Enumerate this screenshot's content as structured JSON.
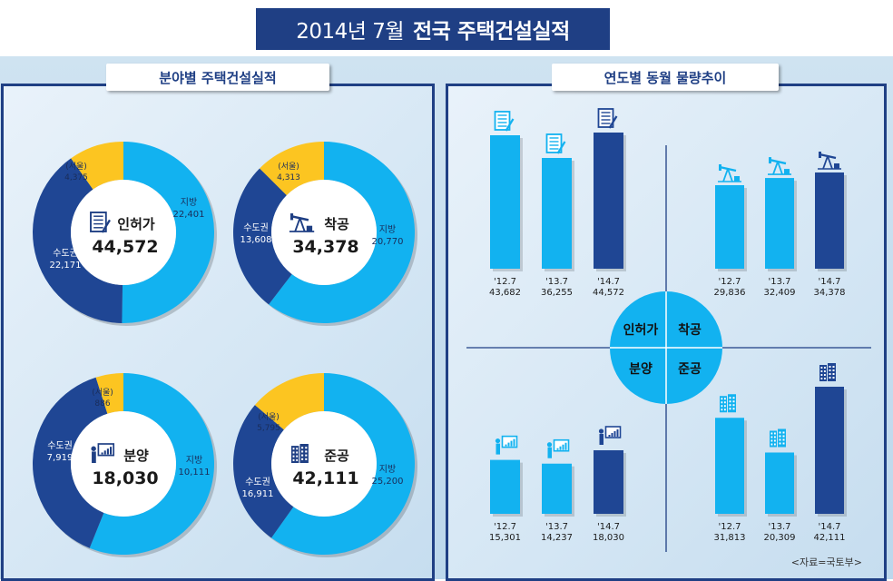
{
  "title": {
    "regular": "2014년  7월",
    "bold": "전국 주택건설실적"
  },
  "left_panel_label": "분야별 주택건설실적",
  "right_panel_label": "연도별 동월 물량추이",
  "source": "<자료=국토부>",
  "chart_data": [
    {
      "type": "pie",
      "name": "인허가",
      "total": "44,572",
      "icon": "document-icon",
      "slices": [
        {
          "label": "지방",
          "value": 22401,
          "display": "22,401",
          "color": "#12b2f0"
        },
        {
          "label": "수도권",
          "value": 22171,
          "display": "22,171",
          "color": "#1f4694"
        },
        {
          "label": "(서울)",
          "value": 4375,
          "display": "4,375",
          "color": "#fcc521"
        }
      ]
    },
    {
      "type": "pie",
      "name": "착공",
      "total": "34,378",
      "icon": "oil-pump-icon",
      "slices": [
        {
          "label": "지방",
          "value": 20770,
          "display": "20,770",
          "color": "#12b2f0"
        },
        {
          "label": "수도권",
          "value": 13608,
          "display": "13,608",
          "color": "#1f4694"
        },
        {
          "label": "(서울)",
          "value": 4313,
          "display": "4,313",
          "color": "#fcc521"
        }
      ]
    },
    {
      "type": "pie",
      "name": "분양",
      "total": "18,030",
      "icon": "presenter-icon",
      "slices": [
        {
          "label": "지방",
          "value": 10111,
          "display": "10,111",
          "color": "#12b2f0"
        },
        {
          "label": "수도권",
          "value": 7919,
          "display": "7,919",
          "color": "#1f4694"
        },
        {
          "label": "(서울)",
          "value": 886,
          "display": "886",
          "color": "#fcc521"
        }
      ]
    },
    {
      "type": "pie",
      "name": "준공",
      "total": "42,111",
      "icon": "building-icon",
      "slices": [
        {
          "label": "지방",
          "value": 25200,
          "display": "25,200",
          "color": "#12b2f0"
        },
        {
          "label": "수도권",
          "value": 16911,
          "display": "16,911",
          "color": "#1f4694"
        },
        {
          "label": "(서울)",
          "value": 5795,
          "display": "5,795",
          "color": "#fcc521"
        }
      ]
    },
    {
      "type": "bar",
      "name": "인허가",
      "categories": [
        "'12.7",
        "'13.7",
        "'14.7"
      ],
      "values": [
        43682,
        36255,
        44572
      ],
      "display": [
        "43,682",
        "36,255",
        "44,572"
      ],
      "colors": [
        "#12b2f0",
        "#12b2f0",
        "#1f4694"
      ]
    },
    {
      "type": "bar",
      "name": "착공",
      "categories": [
        "'12.7",
        "'13.7",
        "'14.7"
      ],
      "values": [
        29836,
        32409,
        34378
      ],
      "display": [
        "29,836",
        "32,409",
        "34,378"
      ],
      "colors": [
        "#12b2f0",
        "#12b2f0",
        "#1f4694"
      ]
    },
    {
      "type": "bar",
      "name": "분양",
      "categories": [
        "'12.7",
        "'13.7",
        "'14.7"
      ],
      "values": [
        15301,
        14237,
        18030
      ],
      "display": [
        "15,301",
        "14,237",
        "18,030"
      ],
      "colors": [
        "#12b2f0",
        "#12b2f0",
        "#1f4694"
      ]
    },
    {
      "type": "bar",
      "name": "준공",
      "categories": [
        "'12.7",
        "'13.7",
        "'14.7"
      ],
      "values": [
        31813,
        20309,
        42111
      ],
      "display": [
        "31,813",
        "20,309",
        "42,111"
      ],
      "colors": [
        "#12b2f0",
        "#12b2f0",
        "#1f4694"
      ]
    }
  ],
  "center_labels": [
    "인허가",
    "착공",
    "분양",
    "준공"
  ]
}
